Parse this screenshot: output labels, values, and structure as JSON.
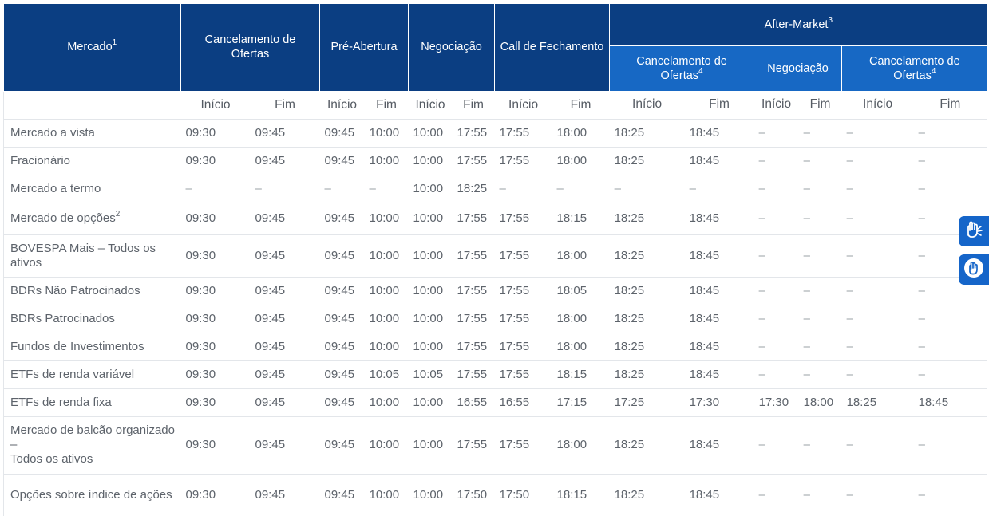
{
  "header": {
    "mercado": "Mercado",
    "mercado_sup": "1",
    "cancelamento": "Cancelamento de Ofertas",
    "pre_abertura": "Pré-Abertura",
    "negociacao": "Negociação",
    "call": "Call de Fechamento",
    "after_market": "After-Market",
    "after_market_sup": "3",
    "am_cancelamento": "Cancelamento de Ofertas",
    "am_cancelamento_sup": "4",
    "am_negociacao": "Negociação",
    "am_cancelamento2": "Cancelamento de Ofertas",
    "am_cancelamento2_sup": "4"
  },
  "subheader": [
    "Início",
    "Fim",
    "Início",
    "Fim",
    "Início",
    "Fim",
    "Início",
    "Fim",
    "Início",
    "Fim",
    "Início",
    "Fim",
    "Início",
    "Fim"
  ],
  "rows": [
    {
      "name": "Mercado a vista",
      "sup": "",
      "cells": [
        "09:30",
        "09:45",
        "09:45",
        "10:00",
        "10:00",
        "17:55",
        "17:55",
        "18:00",
        "18:25",
        "18:45",
        "–",
        "–",
        "–",
        "–"
      ]
    },
    {
      "name": "Fracionário",
      "sup": "",
      "cells": [
        "09:30",
        "09:45",
        "09:45",
        "10:00",
        "10:00",
        "17:55",
        "17:55",
        "18:00",
        "18:25",
        "18:45",
        "–",
        "–",
        "–",
        "–"
      ]
    },
    {
      "name": "Mercado a termo",
      "sup": "",
      "cells": [
        "–",
        "–",
        "–",
        "–",
        "10:00",
        "18:25",
        "–",
        "–",
        "–",
        "–",
        "–",
        "–",
        "–",
        "–"
      ]
    },
    {
      "name": "Mercado de opções",
      "sup": "2",
      "cells": [
        "09:30",
        "09:45",
        "09:45",
        "10:00",
        "10:00",
        "17:55",
        "17:55",
        "18:15",
        "18:25",
        "18:45",
        "–",
        "–",
        "–",
        "–"
      ]
    },
    {
      "name": "BOVESPA Mais – Todos os ativos",
      "sup": "",
      "cells": [
        "09:30",
        "09:45",
        "09:45",
        "10:00",
        "10:00",
        "17:55",
        "17:55",
        "18:00",
        "18:25",
        "18:45",
        "–",
        "–",
        "–",
        "–"
      ]
    },
    {
      "name": "BDRs Não Patrocinados",
      "sup": "",
      "cells": [
        "09:30",
        "09:45",
        "09:45",
        "10:00",
        "10:00",
        "17:55",
        "17:55",
        "18:05",
        "18:25",
        "18:45",
        "–",
        "–",
        "–",
        "–"
      ]
    },
    {
      "name": "BDRs Patrocinados",
      "sup": "",
      "cells": [
        "09:30",
        "09:45",
        "09:45",
        "10:00",
        "10:00",
        "17:55",
        "17:55",
        "18:00",
        "18:25",
        "18:45",
        "–",
        "–",
        "–",
        "–"
      ]
    },
    {
      "name": "Fundos de Investimentos",
      "sup": "",
      "cells": [
        "09:30",
        "09:45",
        "09:45",
        "10:00",
        "10:00",
        "17:55",
        "17:55",
        "18:00",
        "18:25",
        "18:45",
        "–",
        "–",
        "–",
        "–"
      ]
    },
    {
      "name": "ETFs de renda variável",
      "sup": "",
      "cells": [
        "09:30",
        "09:45",
        "09:45",
        "10:05",
        "10:05",
        "17:55",
        "17:55",
        "18:15",
        "18:25",
        "18:45",
        "–",
        "–",
        "–",
        "–"
      ]
    },
    {
      "name": "ETFs de renda fixa",
      "sup": "",
      "cells": [
        "09:30",
        "09:45",
        "09:45",
        "10:00",
        "10:00",
        "16:55",
        "16:55",
        "17:15",
        "17:25",
        "17:30",
        "17:30",
        "18:00",
        "18:25",
        "18:45"
      ]
    },
    {
      "name": "Mercado de balcão organizado –\nTodos os ativos",
      "sup": "",
      "cells": [
        "09:30",
        "09:45",
        "09:45",
        "10:00",
        "10:00",
        "17:55",
        "17:55",
        "18:00",
        "18:25",
        "18:45",
        "–",
        "–",
        "–",
        "–"
      ]
    },
    {
      "name": "Opções sobre índice de ações",
      "sup": "",
      "cells": [
        "09:30",
        "09:45",
        "09:45",
        "10:00",
        "10:00",
        "17:50",
        "17:50",
        "18:15",
        "18:25",
        "18:45",
        "–",
        "–",
        "–",
        "–"
      ]
    }
  ],
  "accessibility": {
    "sign_language_icon": "hand-signing-icon",
    "hugo_icon": "vlibras-hand-icon",
    "accent": "#1565c9"
  },
  "colors": {
    "header_dark": "#0b3e82",
    "header_light": "#1768c4"
  }
}
